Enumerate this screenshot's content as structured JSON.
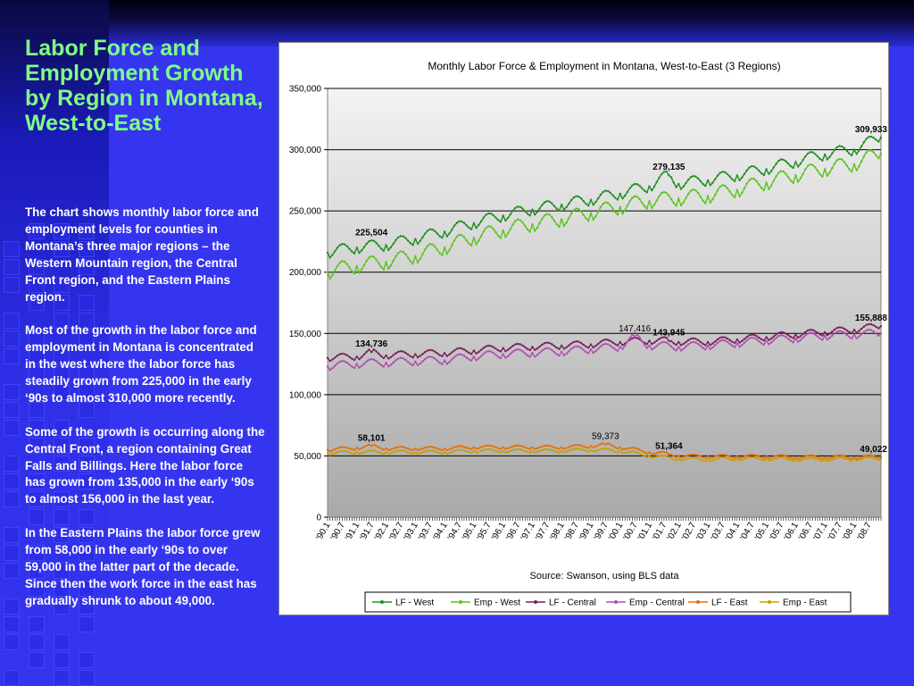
{
  "slide": {
    "title": "Labor Force and Employment Growth by Region in Montana, West-to-East",
    "paragraphs": [
      "The chart shows monthly labor force and employment levels for counties in Montana’s three major regions – the Western Mountain region, the Central Front region, and the Eastern Plains region.",
      "Most of the growth in the labor force and employment in Montana is concentrated in the west where the labor force has steadily grown from 225,000 in the early ‘90s to almost 310,000 more recently.",
      "Some of the growth is occurring along the Central Front, a region containing Great Falls and Billings. Here the labor force has grown from 135,000 in the early ‘90s to almost 156,000 in the last year.",
      "In the Eastern Plains the labor force grew from 58,000 in the early ‘90s to over 59,000 in the latter part of the decade.  Since then the work force in the east has gradually shrunk to about 49,000."
    ],
    "colors": {
      "title": "#7fff84",
      "background": "#3535f0",
      "text": "#ffffff"
    }
  },
  "chart_data": {
    "type": "line",
    "title": "Monthly Labor Force & Employment in Montana, West-to-East (3 Regions)",
    "xlabel": "Source: Swanson, using BLS data",
    "ylabel": "",
    "ylim": [
      0,
      350000
    ],
    "yticks": [
      "0",
      "50,000",
      "100,000",
      "150,000",
      "200,000",
      "250,000",
      "300,000",
      "350,000"
    ],
    "x_start": "1990-01",
    "x_end": "2008-12",
    "x_tick_labels": [
      "'90.1",
      "'90.7",
      "'91.1",
      "'91.7",
      "'92.1",
      "'92.7",
      "'93.1",
      "'93.7",
      "'94.1",
      "'94.7",
      "'95.1",
      "'95.7",
      "'96.1",
      "'96.7",
      "'97.1",
      "'97.7",
      "'98.1",
      "'98.7",
      "'99.1",
      "'99.7",
      "'00.1",
      "'00.7",
      "'01.1",
      "'01.7",
      "'02.1",
      "'02.7",
      "'03.1",
      "'03.7",
      "'04.1",
      "'04.7",
      "'05.1",
      "'05.7",
      "'06.1",
      "'06.7",
      "'07.1",
      "'07.7",
      "'08.1",
      "'08.7"
    ],
    "grid": true,
    "legend_position": "bottom",
    "series": [
      {
        "name": "LF - West",
        "color": "#1f8f1f",
        "anchors": [
          [
            "1990-01",
            216000
          ],
          [
            "1991-01",
            220000
          ],
          [
            "1992-01",
            222000
          ],
          [
            "1993-01",
            227000
          ],
          [
            "1994-01",
            233000
          ],
          [
            "1995-01",
            240000
          ],
          [
            "1996-01",
            246000
          ],
          [
            "1997-01",
            251000
          ],
          [
            "1998-01",
            255000
          ],
          [
            "1999-01",
            259000
          ],
          [
            "2000-01",
            264000
          ],
          [
            "2001-01",
            270000
          ],
          [
            "2001-09",
            279135
          ],
          [
            "2002-01",
            272000
          ],
          [
            "2003-01",
            275000
          ],
          [
            "2004-01",
            279000
          ],
          [
            "2005-01",
            284000
          ],
          [
            "2006-01",
            290000
          ],
          [
            "2007-01",
            296000
          ],
          [
            "2008-01",
            300000
          ],
          [
            "2008-12",
            309933
          ]
        ]
      },
      {
        "name": "Emp - West",
        "color": "#5cc41c",
        "anchors": [
          [
            "1990-01",
            200000
          ],
          [
            "1991-01",
            205000
          ],
          [
            "1992-01",
            208000
          ],
          [
            "1993-01",
            213000
          ],
          [
            "1994-01",
            220000
          ],
          [
            "1995-01",
            228000
          ],
          [
            "1996-01",
            234000
          ],
          [
            "1997-01",
            239000
          ],
          [
            "1998-01",
            243000
          ],
          [
            "1999-01",
            248000
          ],
          [
            "2000-01",
            253000
          ],
          [
            "2001-01",
            258000
          ],
          [
            "2002-01",
            260000
          ],
          [
            "2003-01",
            262000
          ],
          [
            "2004-01",
            267000
          ],
          [
            "2005-01",
            273000
          ],
          [
            "2006-01",
            279000
          ],
          [
            "2007-01",
            284000
          ],
          [
            "2008-01",
            288000
          ],
          [
            "2008-12",
            297000
          ]
        ]
      },
      {
        "name": "LF - Central",
        "color": "#7a1f5e",
        "anchors": [
          [
            "1990-01",
            130000
          ],
          [
            "1991-01",
            131000
          ],
          [
            "1991-07",
            134736
          ],
          [
            "1992-01",
            132000
          ],
          [
            "1993-01",
            133000
          ],
          [
            "1994-01",
            134000
          ],
          [
            "1995-01",
            136000
          ],
          [
            "1996-01",
            138000
          ],
          [
            "1997-01",
            139000
          ],
          [
            "1998-01",
            140000
          ],
          [
            "1999-01",
            141000
          ],
          [
            "2000-01",
            143000
          ],
          [
            "2001-01",
            144000
          ],
          [
            "2001-09",
            143945
          ],
          [
            "2002-01",
            143000
          ],
          [
            "2003-01",
            143000
          ],
          [
            "2004-01",
            145000
          ],
          [
            "2005-01",
            147000
          ],
          [
            "2006-01",
            149000
          ],
          [
            "2007-01",
            151000
          ],
          [
            "2008-01",
            153000
          ],
          [
            "2008-12",
            155888
          ]
        ]
      },
      {
        "name": "Emp - Central",
        "color": "#b04fb0",
        "anchors": [
          [
            "1990-01",
            123000
          ],
          [
            "1991-01",
            125000
          ],
          [
            "1992-01",
            126000
          ],
          [
            "1993-01",
            127000
          ],
          [
            "1994-01",
            128000
          ],
          [
            "1995-01",
            131000
          ],
          [
            "1996-01",
            133000
          ],
          [
            "1997-01",
            134000
          ],
          [
            "1998-01",
            135000
          ],
          [
            "1999-01",
            137000
          ],
          [
            "2000-01",
            139000
          ],
          [
            "2000-07",
            147416
          ],
          [
            "2001-01",
            140000
          ],
          [
            "2002-01",
            139000
          ],
          [
            "2003-01",
            140000
          ],
          [
            "2004-01",
            142000
          ],
          [
            "2005-01",
            144000
          ],
          [
            "2006-01",
            146000
          ],
          [
            "2007-01",
            148000
          ],
          [
            "2008-01",
            149000
          ],
          [
            "2008-12",
            150000
          ]
        ]
      },
      {
        "name": "LF - East",
        "color": "#e8700a",
        "anchors": [
          [
            "1990-01",
            55000
          ],
          [
            "1991-01",
            56500
          ],
          [
            "1991-07",
            58101
          ],
          [
            "1992-01",
            56000
          ],
          [
            "1993-01",
            56000
          ],
          [
            "1994-01",
            56000
          ],
          [
            "1995-01",
            57000
          ],
          [
            "1996-01",
            57000
          ],
          [
            "1997-01",
            57000
          ],
          [
            "1998-01",
            57000
          ],
          [
            "1999-01",
            58000
          ],
          [
            "1999-07",
            59373
          ],
          [
            "2000-01",
            57000
          ],
          [
            "2001-01",
            53000
          ],
          [
            "2001-09",
            51364
          ],
          [
            "2002-01",
            50000
          ],
          [
            "2003-01",
            49500
          ],
          [
            "2004-01",
            49500
          ],
          [
            "2005-01",
            49500
          ],
          [
            "2006-01",
            49000
          ],
          [
            "2007-01",
            49000
          ],
          [
            "2008-01",
            49000
          ],
          [
            "2008-12",
            49022
          ]
        ]
      },
      {
        "name": "Emp - East",
        "color": "#c8a000",
        "anchors": [
          [
            "1990-01",
            52000
          ],
          [
            "1991-01",
            53000
          ],
          [
            "1992-01",
            53000
          ],
          [
            "1993-01",
            53000
          ],
          [
            "1994-01",
            53000
          ],
          [
            "1995-01",
            54000
          ],
          [
            "1996-01",
            54000
          ],
          [
            "1997-01",
            54000
          ],
          [
            "1998-01",
            54000
          ],
          [
            "1999-01",
            55000
          ],
          [
            "2000-01",
            54000
          ],
          [
            "2001-01",
            50000
          ],
          [
            "2002-01",
            47500
          ],
          [
            "2003-01",
            47000
          ],
          [
            "2004-01",
            47500
          ],
          [
            "2005-01",
            47500
          ],
          [
            "2006-01",
            47000
          ],
          [
            "2007-01",
            47000
          ],
          [
            "2008-01",
            47500
          ],
          [
            "2008-12",
            47500
          ]
        ]
      }
    ],
    "data_labels": [
      {
        "text": "309,933",
        "x": "2008-12",
        "y": 309933,
        "bold": true
      },
      {
        "text": "279,135",
        "x": "2001-09",
        "y": 279135,
        "bold": true
      },
      {
        "text": "225,504",
        "x": "1991-07",
        "y": 225504,
        "bold": true
      },
      {
        "text": "155,888",
        "x": "2008-12",
        "y": 155888,
        "bold": true
      },
      {
        "text": "147,416",
        "x": "2000-07",
        "y": 147416,
        "bold": false
      },
      {
        "text": "143,945",
        "x": "2001-09",
        "y": 143945,
        "bold": true
      },
      {
        "text": "134,736",
        "x": "1991-07",
        "y": 134736,
        "bold": true
      },
      {
        "text": "59,373",
        "x": "1999-07",
        "y": 59373,
        "bold": false
      },
      {
        "text": "58,101",
        "x": "1991-07",
        "y": 58101,
        "bold": true
      },
      {
        "text": "51,364",
        "x": "2001-09",
        "y": 51364,
        "bold": true
      },
      {
        "text": "49,022",
        "x": "2008-12",
        "y": 49022,
        "bold": true
      }
    ]
  }
}
